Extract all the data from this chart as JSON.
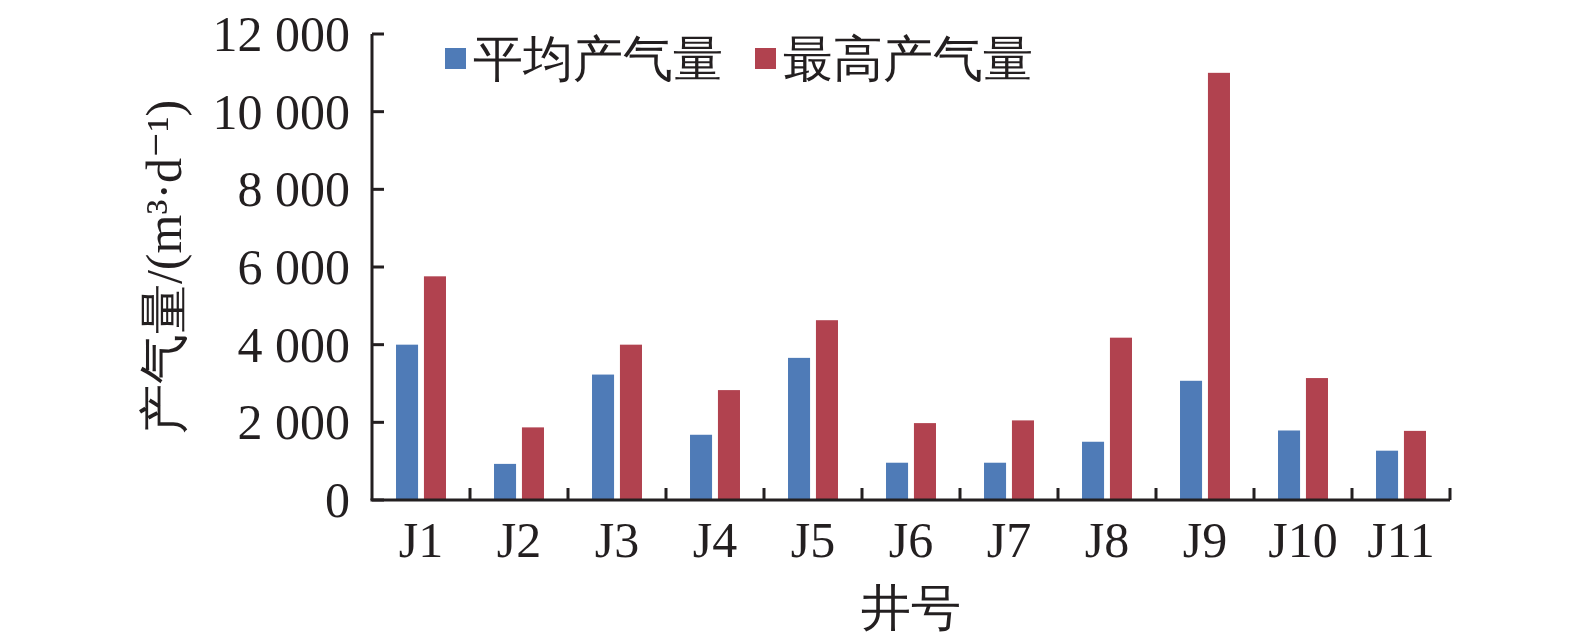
{
  "chart_data": {
    "type": "bar",
    "xlabel": "井号",
    "ylabel": "产气量/(m³·d⁻¹)",
    "categories": [
      "J1",
      "J2",
      "J3",
      "J4",
      "J5",
      "J6",
      "J7",
      "J8",
      "J9",
      "J10",
      "J11"
    ],
    "series": [
      {
        "name": "平均产气量",
        "color": "#4f7bb7",
        "values": [
          4000,
          930,
          3230,
          1680,
          3660,
          960,
          960,
          1500,
          3070,
          1790,
          1270
        ]
      },
      {
        "name": "最高产气量",
        "color": "#b1424f",
        "values": [
          5760,
          1870,
          4000,
          2830,
          4630,
          1980,
          2050,
          4180,
          11000,
          3140,
          1780
        ]
      }
    ],
    "ylim": [
      0,
      12000
    ],
    "yticks": [
      0,
      {
        "value": 2000,
        "label": "2 000"
      },
      {
        "value": 4000,
        "label": "4 000"
      },
      {
        "value": 6000,
        "label": "6 000"
      },
      {
        "value": 8000,
        "label": "8 000"
      },
      {
        "value": 10000,
        "label": "10 000"
      },
      {
        "value": 12000,
        "label": "12 000"
      }
    ],
    "legend": "top left"
  }
}
